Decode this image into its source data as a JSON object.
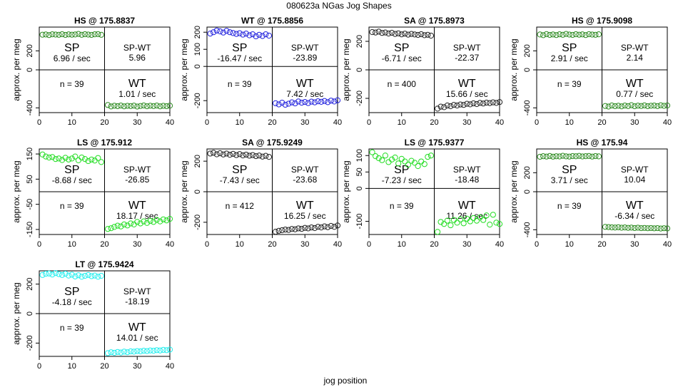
{
  "title": "080623a    NGas Jog Shapes",
  "xlabel": "jog position",
  "chart_data": [
    {
      "type": "scatter",
      "title": "HS @ 175.8837",
      "ylabel": "approx. per meg",
      "color": "#2E8B22",
      "xlim": [
        0,
        40
      ],
      "ylim": [
        -450,
        450
      ],
      "xticks": [
        0,
        10,
        20,
        30,
        40
      ],
      "yticks": [
        -400,
        0,
        200
      ],
      "n_label": "n = 39",
      "sp_rate": "6.96 / sec",
      "spwt": "5.96",
      "wt_rate": "1.01 / sec",
      "sp_y": [
        370,
        372,
        366,
        374,
        371,
        369,
        375,
        368,
        373,
        370,
        372,
        378,
        369,
        375,
        371,
        368,
        374,
        376,
        369
      ],
      "wt_y": [
        -370,
        -385,
        -378,
        -382,
        -376,
        -384,
        -379,
        -381,
        -377,
        -386,
        -380,
        -375,
        -383,
        -378,
        -381,
        -376,
        -384,
        -379,
        -382,
        -377
      ]
    },
    {
      "type": "scatter",
      "title": "WT @ 175.8856",
      "ylabel": "approx. per meg",
      "color": "#2222DD",
      "xlim": [
        0,
        40
      ],
      "ylim": [
        -270,
        230
      ],
      "xticks": [
        0,
        10,
        20,
        30,
        40
      ],
      "yticks": [
        -200,
        0,
        100,
        200
      ],
      "n_label": "n = 39",
      "sp_rate": "-16.47 / sec",
      "spwt": "-23.89",
      "wt_rate": "7.42 / sec",
      "sp_y": [
        192,
        200,
        210,
        205,
        198,
        208,
        200,
        195,
        190,
        194,
        186,
        192,
        182,
        188,
        176,
        185,
        178,
        188,
        180
      ],
      "wt_y": [
        -215,
        -222,
        -212,
        -224,
        -218,
        -210,
        -216,
        -205,
        -212,
        -208,
        -214,
        -206,
        -210,
        -204,
        -207,
        -202,
        -209,
        -200,
        -205,
        -198
      ]
    },
    {
      "type": "scatter",
      "title": "SA @ 175.8973",
      "ylabel": "approx. per meg",
      "color": "#222222",
      "xlim": [
        0,
        40
      ],
      "ylim": [
        -300,
        300
      ],
      "xticks": [
        0,
        10,
        20,
        30,
        40
      ],
      "yticks": [
        -200,
        0,
        200
      ],
      "n_label": "n = 400",
      "sp_rate": "-6.71 / sec",
      "spwt": "-22.37",
      "wt_rate": "15.66 / sec",
      "sp_y": [
        265,
        262,
        268,
        259,
        262,
        255,
        260,
        252,
        256,
        249,
        254,
        247,
        252,
        248,
        245,
        250,
        243,
        246,
        240
      ],
      "wt_y": [
        -272,
        -258,
        -262,
        -250,
        -255,
        -246,
        -250,
        -243,
        -246,
        -238,
        -242,
        -235,
        -240,
        -232,
        -236,
        -230,
        -233,
        -228,
        -232,
        -226
      ]
    },
    {
      "type": "scatter",
      "title": "HS @ 175.9098",
      "ylabel": "approx. per meg",
      "color": "#2E8B22",
      "xlim": [
        0,
        40
      ],
      "ylim": [
        -450,
        450
      ],
      "xticks": [
        0,
        10,
        20,
        30,
        40
      ],
      "yticks": [
        -400,
        0,
        200
      ],
      "n_label": "n = 39",
      "sp_rate": "2.91 / sec",
      "spwt": "2.14",
      "wt_rate": "0.77 / sec",
      "sp_y": [
        372,
        365,
        376,
        368,
        372,
        366,
        374,
        369,
        378,
        371,
        368,
        375,
        370,
        373,
        366,
        375,
        371,
        369,
        374
      ],
      "wt_y": [
        -380,
        -386,
        -375,
        -382,
        -378,
        -384,
        -376,
        -381,
        -372,
        -383,
        -377,
        -380,
        -374,
        -382,
        -378,
        -376,
        -381,
        -373,
        -379,
        -375
      ]
    },
    {
      "type": "scatter",
      "title": "LS @ 175.912",
      "ylabel": "approx. per meg",
      "color": "#22DD22",
      "xlim": [
        0,
        40
      ],
      "ylim": [
        -170,
        170
      ],
      "xticks": [
        0,
        10,
        20,
        30,
        40
      ],
      "yticks": [
        -150,
        -50,
        50,
        150
      ],
      "n_label": "n = 39",
      "sp_rate": "-8.68 / sec",
      "spwt": "-26.85",
      "wt_rate": "18.17 / sec",
      "sp_y": [
        148,
        140,
        136,
        138,
        130,
        132,
        126,
        135,
        128,
        132,
        140,
        125,
        136,
        130,
        122,
        128,
        124,
        134,
        118
      ],
      "wt_y": [
        -148,
        -145,
        -140,
        -135,
        -138,
        -130,
        -134,
        -126,
        -130,
        -120,
        -126,
        -118,
        -124,
        -116,
        -120,
        -112,
        -118,
        -110,
        -114,
        -108
      ]
    },
    {
      "type": "scatter",
      "title": "SA @ 175.9249",
      "ylabel": "approx. per meg",
      "color": "#222222",
      "xlim": [
        0,
        40
      ],
      "ylim": [
        -280,
        280
      ],
      "xticks": [
        0,
        10,
        20,
        30,
        40
      ],
      "yticks": [
        -200,
        0,
        200
      ],
      "n_label": "n = 412",
      "sp_rate": "-7.43 / sec",
      "spwt": "-23.68",
      "wt_rate": "16.25 / sec",
      "sp_y": [
        250,
        255,
        245,
        252,
        244,
        250,
        242,
        248,
        240,
        246,
        238,
        243,
        236,
        240,
        233,
        237,
        230,
        235,
        228
      ],
      "wt_y": [
        -262,
        -256,
        -252,
        -248,
        -250,
        -244,
        -246,
        -240,
        -243,
        -237,
        -240,
        -234,
        -238,
        -230,
        -234,
        -227,
        -232,
        -224,
        -230,
        -221
      ]
    },
    {
      "type": "scatter",
      "title": "LS @ 175.9377",
      "ylabel": "approx. per meg",
      "color": "#22DD22",
      "xlim": [
        0,
        40
      ],
      "ylim": [
        -140,
        120
      ],
      "xticks": [
        0,
        10,
        20,
        30,
        40
      ],
      "yticks": [
        -100,
        0,
        50,
        100
      ],
      "n_label": "n = 39",
      "sp_rate": "-7.23 / sec",
      "spwt": "-18.48",
      "wt_rate": "11.26 / sec",
      "sp_y": [
        110,
        98,
        92,
        86,
        100,
        80,
        88,
        94,
        76,
        90,
        82,
        72,
        84,
        78,
        68,
        82,
        74,
        96,
        100
      ],
      "wt_y": [
        -132,
        -102,
        -108,
        -98,
        -112,
        -96,
        -104,
        -94,
        -106,
        -92,
        -100,
        -90,
        -98,
        -88,
        -96,
        -82,
        -110,
        -80,
        -104,
        -108
      ]
    },
    {
      "type": "scatter",
      "title": "HS @ 175.94",
      "ylabel": "approx. per meg",
      "color": "#2E8B22",
      "xlim": [
        0,
        40
      ],
      "ylim": [
        -450,
        450
      ],
      "xticks": [
        0,
        10,
        20,
        30,
        40
      ],
      "yticks": [
        -400,
        0,
        200
      ],
      "n_label": "n = 39",
      "sp_rate": "3.71 / sec",
      "spwt": "10.04",
      "wt_rate": "-6.34 / sec",
      "sp_y": [
        368,
        374,
        370,
        376,
        369,
        373,
        371,
        378,
        372,
        370,
        375,
        373,
        377,
        371,
        374,
        376,
        370,
        375,
        372
      ],
      "wt_y": [
        -370,
        -372,
        -375,
        -377,
        -374,
        -379,
        -376,
        -380,
        -378,
        -382,
        -379,
        -383,
        -381,
        -384,
        -382,
        -385,
        -383,
        -387,
        -384,
        -386
      ]
    },
    {
      "type": "scatter",
      "title": "LT @ 175.9424",
      "ylabel": "approx. per meg",
      "color": "#22EEEE",
      "xlim": [
        0,
        40
      ],
      "ylim": [
        -290,
        290
      ],
      "xticks": [
        0,
        10,
        20,
        30,
        40
      ],
      "yticks": [
        -200,
        0,
        200
      ],
      "n_label": "n = 39",
      "sp_rate": "-4.18 / sec",
      "spwt": "-18.19",
      "wt_rate": "14.01 / sec",
      "sp_y": [
        262,
        270,
        272,
        265,
        275,
        268,
        262,
        270,
        258,
        264,
        252,
        260,
        250,
        256,
        262,
        254,
        258,
        250,
        256
      ],
      "wt_y": [
        -268,
        -262,
        -266,
        -260,
        -264,
        -258,
        -262,
        -256,
        -258,
        -254,
        -256,
        -252,
        -254,
        -250,
        -252,
        -248,
        -250,
        -246,
        -248,
        -244
      ]
    }
  ]
}
